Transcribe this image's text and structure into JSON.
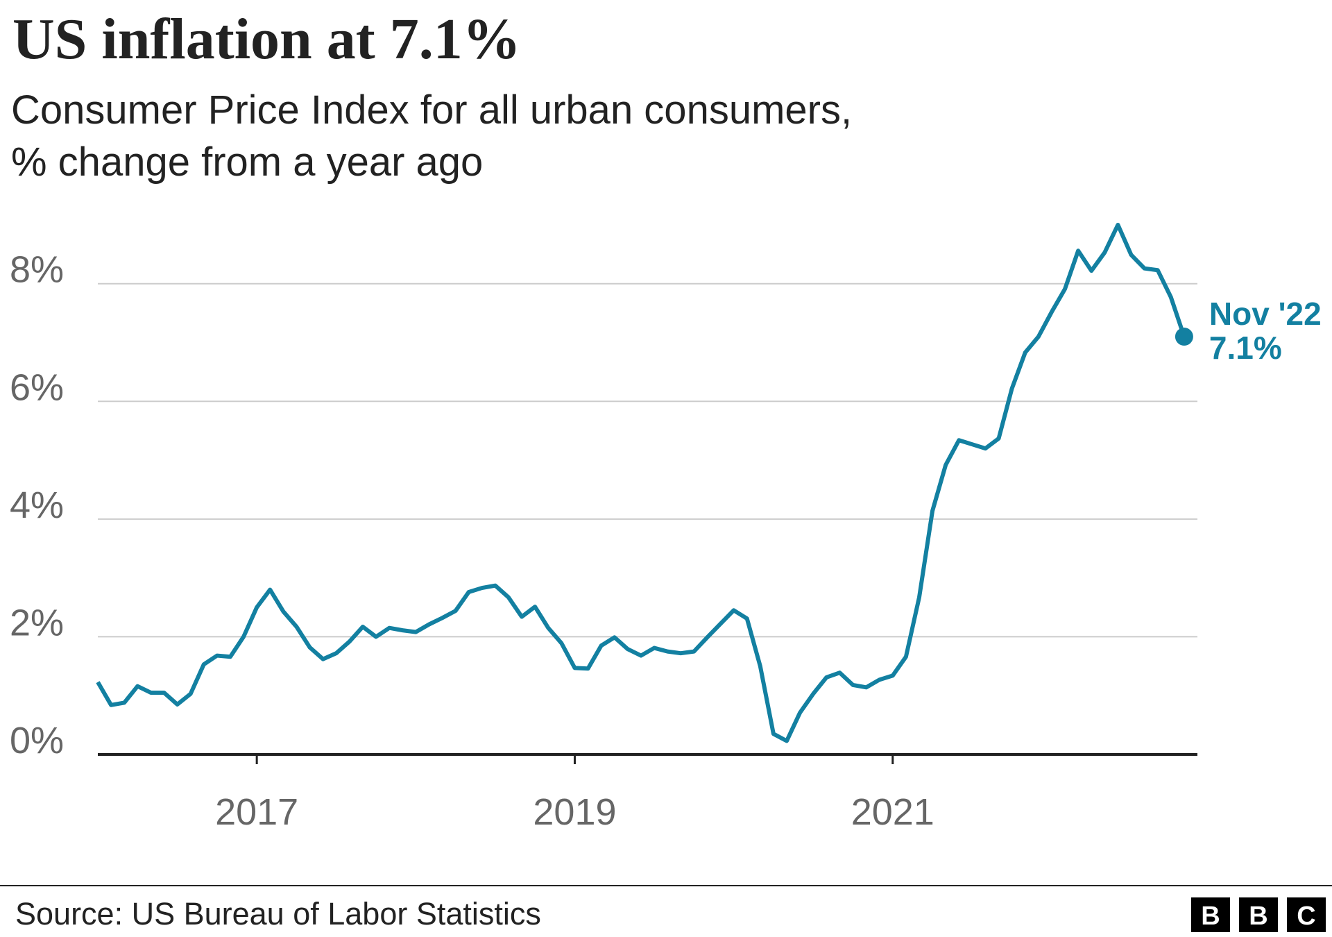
{
  "chart_data": {
    "type": "line",
    "title": "US inflation at 7.1%",
    "subtitle": [
      "Consumer Price Index for all urban consumers,",
      "% change from a year ago"
    ],
    "x": [
      "2016-01",
      "2016-02",
      "2016-03",
      "2016-04",
      "2016-05",
      "2016-06",
      "2016-07",
      "2016-08",
      "2016-09",
      "2016-10",
      "2016-11",
      "2016-12",
      "2017-01",
      "2017-02",
      "2017-03",
      "2017-04",
      "2017-05",
      "2017-06",
      "2017-07",
      "2017-08",
      "2017-09",
      "2017-10",
      "2017-11",
      "2017-12",
      "2018-01",
      "2018-02",
      "2018-03",
      "2018-04",
      "2018-05",
      "2018-06",
      "2018-07",
      "2018-08",
      "2018-09",
      "2018-10",
      "2018-11",
      "2018-12",
      "2019-01",
      "2019-02",
      "2019-03",
      "2019-04",
      "2019-05",
      "2019-06",
      "2019-07",
      "2019-08",
      "2019-09",
      "2019-10",
      "2019-11",
      "2019-12",
      "2020-01",
      "2020-02",
      "2020-03",
      "2020-04",
      "2020-05",
      "2020-06",
      "2020-07",
      "2020-08",
      "2020-09",
      "2020-10",
      "2020-11",
      "2020-12",
      "2021-01",
      "2021-02",
      "2021-03",
      "2021-04",
      "2021-05",
      "2021-06",
      "2021-07",
      "2021-08",
      "2021-09",
      "2021-10",
      "2021-11",
      "2021-12",
      "2022-01",
      "2022-02",
      "2022-03",
      "2022-04",
      "2022-05",
      "2022-06",
      "2022-07",
      "2022-08",
      "2022-09",
      "2022-10",
      "2022-11"
    ],
    "series": [
      {
        "color": "#1380a1",
        "values": [
          1.23,
          0.84,
          0.88,
          1.16,
          1.05,
          1.05,
          0.85,
          1.03,
          1.53,
          1.68,
          1.66,
          2.0,
          2.5,
          2.8,
          2.43,
          2.17,
          1.82,
          1.62,
          1.72,
          1.92,
          2.17,
          2.0,
          2.15,
          2.11,
          2.08,
          2.21,
          2.32,
          2.44,
          2.76,
          2.83,
          2.87,
          2.67,
          2.34,
          2.51,
          2.15,
          1.89,
          1.47,
          1.46,
          1.85,
          1.99,
          1.79,
          1.68,
          1.81,
          1.75,
          1.72,
          1.75,
          1.99,
          2.22,
          2.45,
          2.31,
          1.5,
          0.35,
          0.23,
          0.71,
          1.03,
          1.31,
          1.39,
          1.18,
          1.14,
          1.27,
          1.34,
          1.66,
          2.67,
          4.14,
          4.92,
          5.34,
          5.27,
          5.2,
          5.37,
          6.22,
          6.83,
          7.1,
          7.52,
          7.91,
          8.56,
          8.22,
          8.53,
          9.0,
          8.49,
          8.26,
          8.23,
          7.77,
          7.1
        ]
      }
    ],
    "end_label": {
      "date": "Nov '22",
      "value_label": "7.1%"
    },
    "xlim": [
      "2016-01",
      "2022-12"
    ],
    "xticks": [
      {
        "value": "2017-01",
        "label": "2017"
      },
      {
        "value": "2019-01",
        "label": "2019"
      },
      {
        "value": "2021-01",
        "label": "2021"
      }
    ],
    "ylim": [
      0,
      9.2
    ],
    "yticks": [
      {
        "value": 0,
        "label": "0%"
      },
      {
        "value": 2,
        "label": "2%"
      },
      {
        "value": 4,
        "label": "4%"
      },
      {
        "value": 6,
        "label": "6%"
      },
      {
        "value": 8,
        "label": "8%"
      }
    ],
    "grid": true,
    "source": "Source: US Bureau of Labor Statistics",
    "logo": [
      "B",
      "B",
      "C"
    ]
  }
}
